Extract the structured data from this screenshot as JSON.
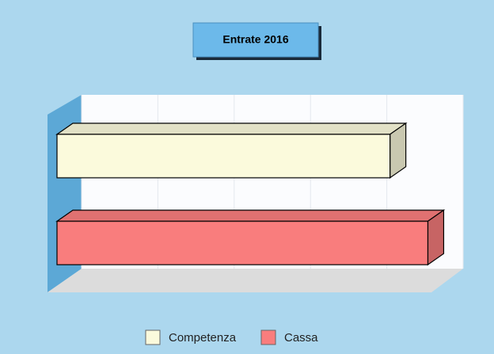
{
  "chart_data": {
    "type": "bar3d_horizontal",
    "title": "Entrate 2016",
    "series": [
      {
        "name": "Competenza",
        "color": "#fbfadc",
        "values": [
          88
        ]
      },
      {
        "name": "Cassa",
        "color": "#f97d7d",
        "values": [
          98
        ]
      }
    ],
    "xlim": [
      0,
      100
    ],
    "xticks": [
      0,
      20,
      40,
      60,
      80,
      100
    ],
    "grid": true
  }
}
